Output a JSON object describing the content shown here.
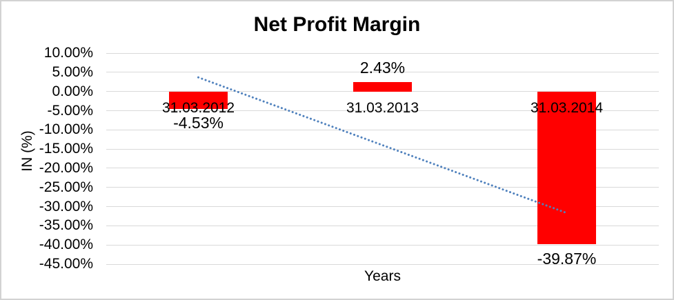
{
  "chart_data": {
    "type": "bar",
    "title": "Net Profit Margin",
    "xlabel": "Years",
    "ylabel": "IN (%)",
    "categories": [
      "31.03.2012",
      "31.03.2013",
      "31.03.2014"
    ],
    "values": [
      -4.53,
      2.43,
      -39.87
    ],
    "data_labels": [
      "-4.53%",
      "2.43%",
      "-39.87%"
    ],
    "y_ticks": [
      {
        "label": "10.00%",
        "value": 10
      },
      {
        "label": "5.00%",
        "value": 5
      },
      {
        "label": "0.00%",
        "value": 0
      },
      {
        "label": "-5.00%",
        "value": -5
      },
      {
        "label": "-10.00%",
        "value": -10
      },
      {
        "label": "-15.00%",
        "value": -15
      },
      {
        "label": "-20.00%",
        "value": -20
      },
      {
        "label": "-25.00%",
        "value": -25
      },
      {
        "label": "-30.00%",
        "value": -30
      },
      {
        "label": "-35.00%",
        "value": -35
      },
      {
        "label": "-40.00%",
        "value": -40
      },
      {
        "label": "-45.00%",
        "value": -45
      }
    ],
    "ylim": [
      -45,
      10
    ],
    "grid": true,
    "legend_position": "none",
    "bar_color": "#ff0000",
    "gridline_color": "#d9d9d9",
    "text_color": "#000000",
    "frame_border_color": "#d2d2d2",
    "trendline": {
      "type": "linear",
      "style": "dotted",
      "color": "#4f81bd",
      "start_value": 3.68,
      "end_value": -31.66
    }
  }
}
